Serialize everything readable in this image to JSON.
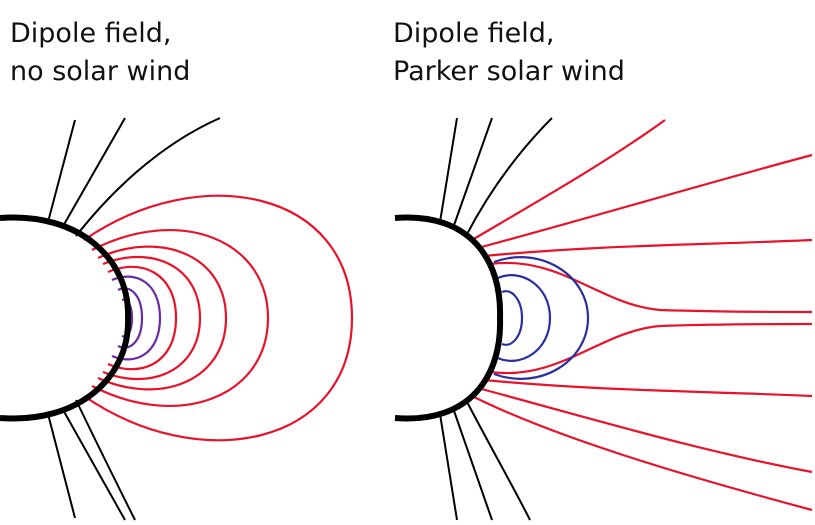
{
  "panels": [
    {
      "title": [
        "Dipole field,",
        "no solar wind"
      ]
    },
    {
      "title": [
        "Dipole field,",
        "Parker solar wind"
      ]
    }
  ]
}
